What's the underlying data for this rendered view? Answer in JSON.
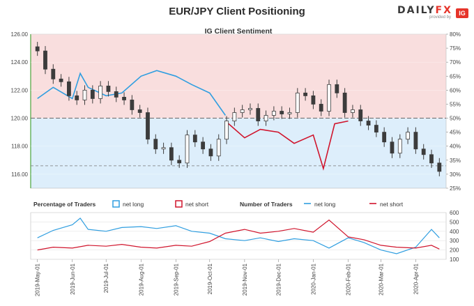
{
  "title": "EUR/JPY Client Positioning",
  "brand": {
    "word_a": "DAILY",
    "word_b": "FX",
    "provided_by": "provided by",
    "badge": "IG"
  },
  "chart_data": [
    {
      "type": "line",
      "title": "IG Client Sentiment",
      "subtype": "candlestick with sentiment overlay",
      "y_left_range": [
        115.0,
        126.0
      ],
      "y_left_ticks": [
        "126.00",
        "124.00",
        "122.00",
        "120.00",
        "118.00",
        "116.00"
      ],
      "y_right_range": [
        25,
        80
      ],
      "y_right_ticks": [
        "80%",
        "75%",
        "70%",
        "65%",
        "60%",
        "55%",
        "50%",
        "45%",
        "40%",
        "35%",
        "30%",
        "25%"
      ],
      "x_ticks": [
        "2019-May-01",
        "2019-Jun-01",
        "2019-Jul-01",
        "2019-Aug-01",
        "2019-Sep-01",
        "2019-Oct-01",
        "2019-Nov-01",
        "2019-Dec-01",
        "2020-Jan-01",
        "2020-Feb-01",
        "2020-Mar-01",
        "2020-Apr-01"
      ],
      "reference_lines": {
        "price": 116.6,
        "percent": 50
      },
      "colors": {
        "long": "#2f9ee0",
        "short": "#d0142c",
        "upper_band": "#f9dede",
        "lower_band": "#ddeefb",
        "candle": "#3c3c3c"
      },
      "price_close": [
        {
          "date": "2019-May-01",
          "value": 124.8
        },
        {
          "date": "2019-May-08",
          "value": 123.5
        },
        {
          "date": "2019-May-15",
          "value": 122.8
        },
        {
          "date": "2019-May-22",
          "value": 122.6
        },
        {
          "date": "2019-May-29",
          "value": 121.6
        },
        {
          "date": "2019-Jun-05",
          "value": 121.3
        },
        {
          "date": "2019-Jun-12",
          "value": 122.0
        },
        {
          "date": "2019-Jun-19",
          "value": 121.4
        },
        {
          "date": "2019-Jun-26",
          "value": 122.3
        },
        {
          "date": "2019-Jul-03",
          "value": 121.9
        },
        {
          "date": "2019-Jul-10",
          "value": 121.5
        },
        {
          "date": "2019-Jul-17",
          "value": 121.3
        },
        {
          "date": "2019-Jul-24",
          "value": 120.6
        },
        {
          "date": "2019-Jul-31",
          "value": 120.4
        },
        {
          "date": "2019-Aug-07",
          "value": 118.5
        },
        {
          "date": "2019-Aug-14",
          "value": 117.8
        },
        {
          "date": "2019-Aug-21",
          "value": 117.9
        },
        {
          "date": "2019-Aug-28",
          "value": 117.0
        },
        {
          "date": "2019-Sep-04",
          "value": 116.8
        },
        {
          "date": "2019-Sep-11",
          "value": 118.8
        },
        {
          "date": "2019-Sep-18",
          "value": 118.3
        },
        {
          "date": "2019-Sep-25",
          "value": 117.8
        },
        {
          "date": "2019-Oct-02",
          "value": 117.3
        },
        {
          "date": "2019-Oct-09",
          "value": 118.5
        },
        {
          "date": "2019-Oct-16",
          "value": 119.8
        },
        {
          "date": "2019-Oct-23",
          "value": 120.4
        },
        {
          "date": "2019-Oct-30",
          "value": 120.6
        },
        {
          "date": "2019-Nov-06",
          "value": 120.7
        },
        {
          "date": "2019-Nov-13",
          "value": 119.8
        },
        {
          "date": "2019-Nov-20",
          "value": 120.2
        },
        {
          "date": "2019-Nov-27",
          "value": 120.5
        },
        {
          "date": "2019-Dec-04",
          "value": 120.3
        },
        {
          "date": "2019-Dec-11",
          "value": 120.4
        },
        {
          "date": "2019-Dec-18",
          "value": 121.8
        },
        {
          "date": "2019-Dec-25",
          "value": 121.6
        },
        {
          "date": "2020-Jan-01",
          "value": 121.0
        },
        {
          "date": "2020-Jan-08",
          "value": 120.5
        },
        {
          "date": "2020-Jan-15",
          "value": 122.4
        },
        {
          "date": "2020-Jan-22",
          "value": 121.8
        },
        {
          "date": "2020-Jan-29",
          "value": 120.4
        },
        {
          "date": "2020-Feb-05",
          "value": 120.6
        },
        {
          "date": "2020-Feb-12",
          "value": 119.8
        },
        {
          "date": "2020-Feb-19",
          "value": 119.5
        },
        {
          "date": "2020-Feb-26",
          "value": 119.0
        },
        {
          "date": "2020-Mar-04",
          "value": 118.3
        },
        {
          "date": "2020-Mar-11",
          "value": 117.5
        },
        {
          "date": "2020-Mar-18",
          "value": 118.5
        },
        {
          "date": "2020-Mar-25",
          "value": 119.0
        },
        {
          "date": "2020-Apr-01",
          "value": 117.8
        },
        {
          "date": "2020-Apr-08",
          "value": 117.4
        },
        {
          "date": "2020-Apr-15",
          "value": 116.8
        },
        {
          "date": "2020-Apr-22",
          "value": 116.2
        }
      ],
      "series": [
        {
          "name": "net long",
          "values": [
            {
              "date": "2019-May-01",
              "value": 57
            },
            {
              "date": "2019-May-15",
              "value": 61
            },
            {
              "date": "2019-Jun-01",
              "value": 57
            },
            {
              "date": "2019-Jun-08",
              "value": 66
            },
            {
              "date": "2019-Jun-15",
              "value": 61
            },
            {
              "date": "2019-Jul-01",
              "value": 58
            },
            {
              "date": "2019-Jul-15",
              "value": 59
            },
            {
              "date": "2019-Aug-01",
              "value": 65
            },
            {
              "date": "2019-Aug-15",
              "value": 67
            },
            {
              "date": "2019-Sep-01",
              "value": 65
            },
            {
              "date": "2019-Sep-15",
              "value": 62
            },
            {
              "date": "2019-Oct-01",
              "value": 59
            },
            {
              "date": "2019-Oct-15",
              "value": 51
            }
          ]
        },
        {
          "name": "net short",
          "values": [
            {
              "date": "2019-Oct-15",
              "value": 49
            },
            {
              "date": "2019-Nov-01",
              "value": 43
            },
            {
              "date": "2019-Nov-15",
              "value": 46
            },
            {
              "date": "2019-Dec-01",
              "value": 45
            },
            {
              "date": "2019-Dec-15",
              "value": 41
            },
            {
              "date": "2020-Jan-01",
              "value": 44
            },
            {
              "date": "2020-Jan-10",
              "value": 32
            },
            {
              "date": "2020-Jan-20",
              "value": 48
            },
            {
              "date": "2020-Feb-01",
              "value": 49
            }
          ]
        }
      ],
      "legend": [
        {
          "group": "Percentage of Traders",
          "items": [
            "net long",
            "net short"
          ]
        },
        {
          "group": "Number of Traders",
          "items": [
            "net long",
            "net short"
          ]
        }
      ]
    },
    {
      "type": "line",
      "y_range": [
        100,
        600
      ],
      "y_ticks": [
        "600",
        "500",
        "400",
        "300",
        "200",
        "100"
      ],
      "series": [
        {
          "name": "net long",
          "values": [
            {
              "date": "2019-May-01",
              "value": 330
            },
            {
              "date": "2019-May-15",
              "value": 410
            },
            {
              "date": "2019-Jun-01",
              "value": 470
            },
            {
              "date": "2019-Jun-08",
              "value": 540
            },
            {
              "date": "2019-Jun-15",
              "value": 420
            },
            {
              "date": "2019-Jul-01",
              "value": 400
            },
            {
              "date": "2019-Jul-15",
              "value": 440
            },
            {
              "date": "2019-Aug-01",
              "value": 450
            },
            {
              "date": "2019-Aug-15",
              "value": 430
            },
            {
              "date": "2019-Sep-01",
              "value": 460
            },
            {
              "date": "2019-Sep-15",
              "value": 400
            },
            {
              "date": "2019-Oct-01",
              "value": 380
            },
            {
              "date": "2019-Oct-15",
              "value": 320
            },
            {
              "date": "2019-Nov-01",
              "value": 300
            },
            {
              "date": "2019-Nov-15",
              "value": 330
            },
            {
              "date": "2019-Dec-01",
              "value": 290
            },
            {
              "date": "2019-Dec-15",
              "value": 320
            },
            {
              "date": "2020-Jan-01",
              "value": 300
            },
            {
              "date": "2020-Jan-15",
              "value": 220
            },
            {
              "date": "2020-Feb-01",
              "value": 330
            },
            {
              "date": "2020-Feb-15",
              "value": 280
            },
            {
              "date": "2020-Mar-01",
              "value": 200
            },
            {
              "date": "2020-Mar-15",
              "value": 160
            },
            {
              "date": "2020-Apr-01",
              "value": 230
            },
            {
              "date": "2020-Apr-15",
              "value": 420
            },
            {
              "date": "2020-Apr-22",
              "value": 330
            }
          ]
        },
        {
          "name": "net short",
          "values": [
            {
              "date": "2019-May-01",
              "value": 200
            },
            {
              "date": "2019-May-15",
              "value": 230
            },
            {
              "date": "2019-Jun-01",
              "value": 220
            },
            {
              "date": "2019-Jun-15",
              "value": 250
            },
            {
              "date": "2019-Jul-01",
              "value": 240
            },
            {
              "date": "2019-Jul-15",
              "value": 260
            },
            {
              "date": "2019-Aug-01",
              "value": 230
            },
            {
              "date": "2019-Aug-15",
              "value": 220
            },
            {
              "date": "2019-Sep-01",
              "value": 250
            },
            {
              "date": "2019-Sep-15",
              "value": 240
            },
            {
              "date": "2019-Oct-01",
              "value": 290
            },
            {
              "date": "2019-Oct-15",
              "value": 380
            },
            {
              "date": "2019-Nov-01",
              "value": 420
            },
            {
              "date": "2019-Nov-15",
              "value": 380
            },
            {
              "date": "2019-Dec-01",
              "value": 400
            },
            {
              "date": "2019-Dec-15",
              "value": 430
            },
            {
              "date": "2020-Jan-01",
              "value": 390
            },
            {
              "date": "2020-Jan-15",
              "value": 520
            },
            {
              "date": "2020-Feb-01",
              "value": 340
            },
            {
              "date": "2020-Feb-15",
              "value": 310
            },
            {
              "date": "2020-Mar-01",
              "value": 250
            },
            {
              "date": "2020-Mar-15",
              "value": 230
            },
            {
              "date": "2020-Apr-01",
              "value": 220
            },
            {
              "date": "2020-Apr-15",
              "value": 250
            },
            {
              "date": "2020-Apr-22",
              "value": 210
            }
          ]
        }
      ]
    }
  ]
}
